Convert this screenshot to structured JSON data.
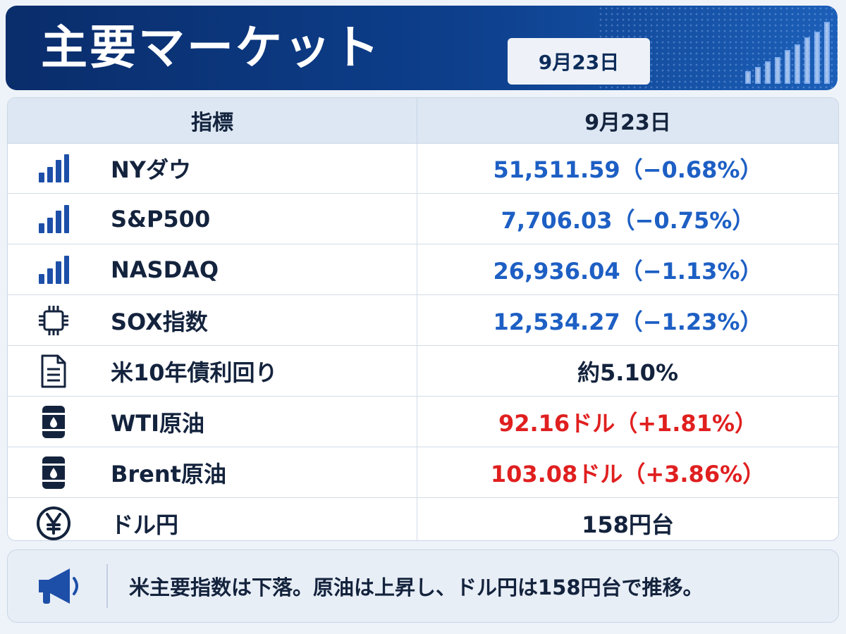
{
  "header": {
    "title": "主要マーケット",
    "date": "9月23日"
  },
  "table": {
    "col_indicator": "指標",
    "col_date": "9月23日",
    "rows": [
      {
        "icon": "bar-chart-icon",
        "name": "NYダウ",
        "value": "51,511.59（−0.68%）",
        "color": "#1d5fc4"
      },
      {
        "icon": "bar-chart-icon",
        "name": "S&P500",
        "value": "7,706.03（−0.75%）",
        "color": "#1d5fc4"
      },
      {
        "icon": "bar-chart-icon",
        "name": "NASDAQ",
        "value": "26,936.04（−1.13%）",
        "color": "#1d5fc4"
      },
      {
        "icon": "chip-icon",
        "name": "SOX指数",
        "value": "12,534.27（−1.23%）",
        "color": "#1d5fc4"
      },
      {
        "icon": "document-icon",
        "name": "米10年債利回り",
        "value": "約5.10%",
        "color": "#14233d"
      },
      {
        "icon": "oil-barrel-icon",
        "name": "WTI原油",
        "value": "92.16ドル（+1.81%）",
        "color": "#e01f1f"
      },
      {
        "icon": "oil-barrel-icon",
        "name": "Brent原油",
        "value": "103.08ドル（+3.86%）",
        "color": "#e01f1f"
      },
      {
        "icon": "yen-icon",
        "name": "ドル円",
        "value": "158円台",
        "color": "#14233d"
      }
    ]
  },
  "footer": {
    "icon": "megaphone-icon",
    "text": "米主要指数は下落。原油は上昇し、ドル円は158円台で推移。"
  },
  "colors": {
    "header_bg": "#0d3f8c",
    "negative": "#1d5fc4",
    "positive": "#e01f1f",
    "icon": "#1d4fa8"
  }
}
